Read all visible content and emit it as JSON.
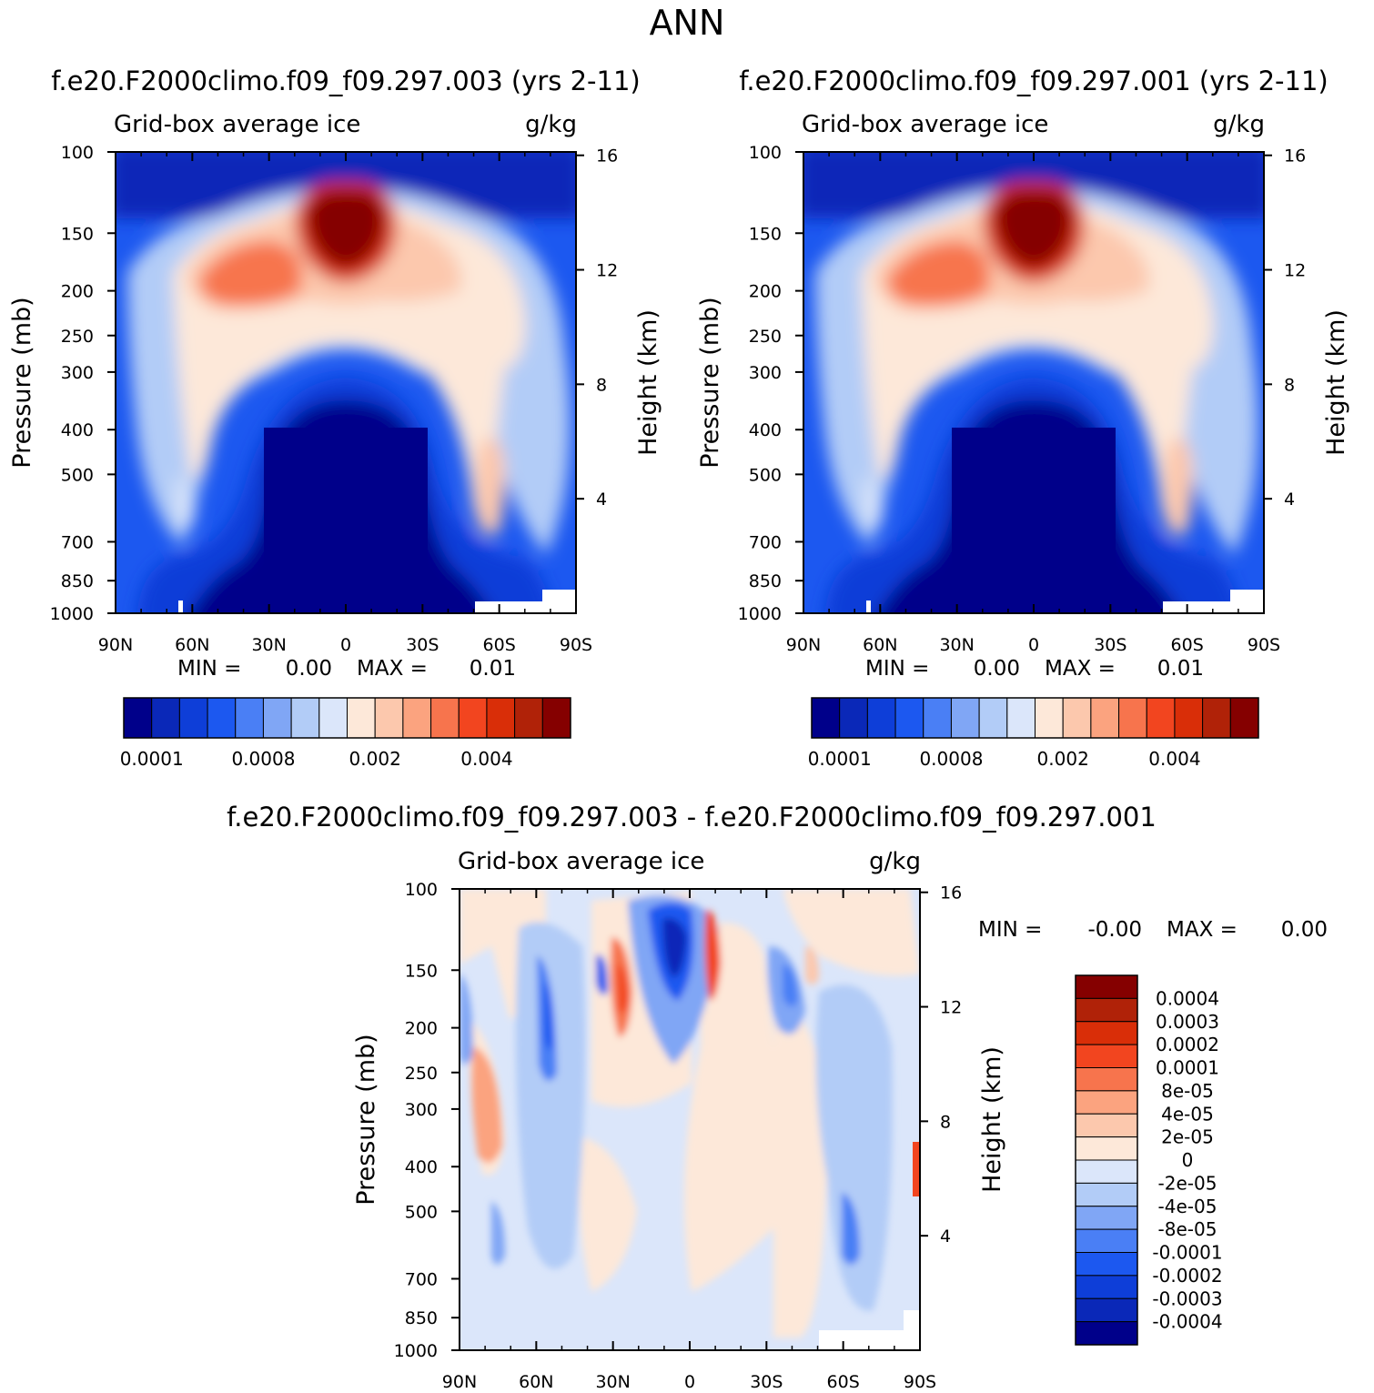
{
  "page_title": "ANN",
  "chart_data": [
    {
      "type": "heatmap",
      "id": "panel1",
      "title": "f.e20.F2000climo.f09_f09.297.003 (yrs 2-11)",
      "subtitle_left": "Grid-box average ice",
      "subtitle_right": "g/kg",
      "ylabel": "Pressure (mb)",
      "y2label": "Height (km)",
      "xticks": [
        "90N",
        "60N",
        "30N",
        "0",
        "30S",
        "60S",
        "90S"
      ],
      "yticks": [
        100,
        150,
        200,
        250,
        300,
        400,
        500,
        700,
        850,
        1000
      ],
      "y2ticks": [
        16,
        12,
        8,
        4
      ],
      "stats": {
        "min_label": "MIN =",
        "min": "0.00",
        "max_label": "MAX =",
        "max": "0.01"
      },
      "colorbar_labels": [
        "0.0001",
        "0.0008",
        "0.002",
        "0.004"
      ],
      "colors": [
        "#00008a",
        "#0a28b8",
        "#0e3ed8",
        "#1c58f0",
        "#4a7ff5",
        "#80a6f5",
        "#b2ccf7",
        "#dbe6fa",
        "#fde8d9",
        "#fcc8ad",
        "#fba37f",
        "#f7744d",
        "#f2451f",
        "#d92e08",
        "#b02208",
        "#850000"
      ]
    },
    {
      "type": "heatmap",
      "id": "panel2",
      "title": "f.e20.F2000climo.f09_f09.297.001 (yrs 2-11)",
      "subtitle_left": "Grid-box average ice",
      "subtitle_right": "g/kg",
      "ylabel": "Pressure (mb)",
      "y2label": "Height (km)",
      "xticks": [
        "90N",
        "60N",
        "30N",
        "0",
        "30S",
        "60S",
        "90S"
      ],
      "yticks": [
        100,
        150,
        200,
        250,
        300,
        400,
        500,
        700,
        850,
        1000
      ],
      "y2ticks": [
        16,
        12,
        8,
        4
      ],
      "stats": {
        "min_label": "MIN =",
        "min": "0.00",
        "max_label": "MAX =",
        "max": "0.01"
      },
      "colorbar_labels": [
        "0.0001",
        "0.0008",
        "0.002",
        "0.004"
      ],
      "colors": [
        "#00008a",
        "#0a28b8",
        "#0e3ed8",
        "#1c58f0",
        "#4a7ff5",
        "#80a6f5",
        "#b2ccf7",
        "#dbe6fa",
        "#fde8d9",
        "#fcc8ad",
        "#fba37f",
        "#f7744d",
        "#f2451f",
        "#d92e08",
        "#b02208",
        "#850000"
      ]
    },
    {
      "type": "heatmap",
      "id": "panel3",
      "title": "f.e20.F2000climo.f09_f09.297.003 - f.e20.F2000climo.f09_f09.297.001",
      "subtitle_left": "Grid-box average ice",
      "subtitle_right": "g/kg",
      "ylabel": "Pressure (mb)",
      "y2label": "Height (km)",
      "xticks": [
        "90N",
        "60N",
        "30N",
        "0",
        "30S",
        "60S",
        "90S"
      ],
      "yticks": [
        100,
        150,
        200,
        250,
        300,
        400,
        500,
        700,
        850,
        1000
      ],
      "y2ticks": [
        16,
        12,
        8,
        4
      ],
      "stats": {
        "min_label": "MIN =",
        "min": "-0.00",
        "max_label": "MAX =",
        "max": "0.00"
      },
      "colorbar_labels": [
        "0.0004",
        "0.0003",
        "0.0002",
        "0.0001",
        "8e-05",
        "4e-05",
        "2e-05",
        "0",
        "-2e-05",
        "-4e-05",
        "-8e-05",
        "-0.0001",
        "-0.0002",
        "-0.0003",
        "-0.0004"
      ],
      "colors": [
        "#850000",
        "#b02208",
        "#d92e08",
        "#f2451f",
        "#f7744d",
        "#fba37f",
        "#fcc8ad",
        "#fde8d9",
        "#dbe6fa",
        "#b2ccf7",
        "#80a6f5",
        "#4a7ff5",
        "#1c58f0",
        "#0e3ed8",
        "#0a28b8",
        "#00008a"
      ]
    }
  ]
}
